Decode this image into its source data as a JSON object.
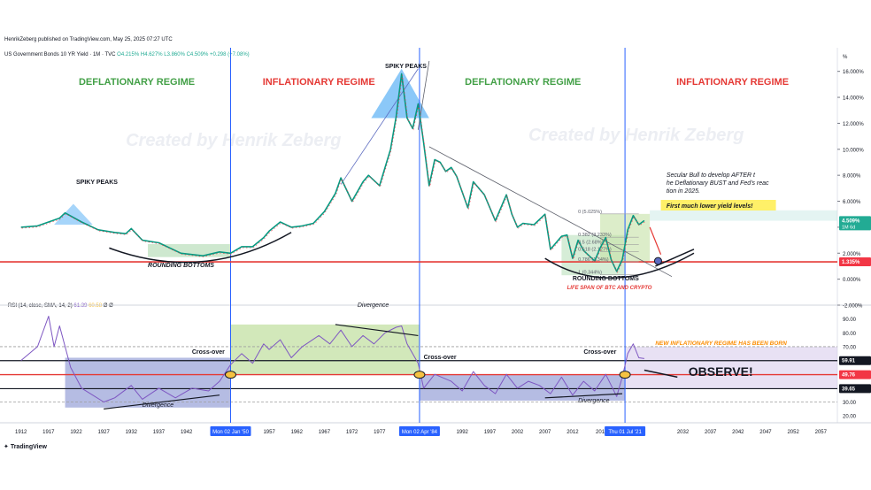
{
  "publisher_line": "HenrikZeberg published on TradingView.com, May 25, 2025 07:27 UTC",
  "symbol_line": {
    "name": "US Government Bonds 10 YR Yield · 1M · TVC",
    "open": "O4.215%",
    "high": "H4.627%",
    "low": "L3.860%",
    "close": "C4.509%",
    "change": "+0.298 (+7.08%)"
  },
  "rsi_line": {
    "label": "RSI (14, close, SMA, 14, 2)",
    "value": "61.39",
    "sma": "60.58",
    "extra": "Ø Ø"
  },
  "branding": "TradingView",
  "percent_symbol": "%",
  "watermarks": [
    "Created by Henrik Zeberg",
    "Created by Henrik Zeberg"
  ],
  "regimes": [
    {
      "label": "DEFLATIONARY REGIME",
      "color": "#43a047"
    },
    {
      "label": "INFLATIONARY REGIME",
      "color": "#e53935"
    },
    {
      "label": "DEFLATIONARY REGIME",
      "color": "#43a047"
    },
    {
      "label": "INFLATIONARY REGIME",
      "color": "#e53935"
    }
  ],
  "annotations": {
    "spiky_peaks_left": "SPIKY PEAKS",
    "spiky_peaks_top": "SPIKY PEAKS",
    "rounding_bottoms_left": "ROUNDING BOTTOMS",
    "rounding_bottoms_right": "ROUNDING BOTTOMS",
    "life_span": "LIFE SPAN OF BTC AND CRYPTO",
    "secular_bull": "Secular Bull to develop AFTER the Deflationary BUST and Fed's reaction in 2025.",
    "lower_yield": "First much lower yield levels!",
    "new_regime": "NEW INFLATIONARY REGIME HAS BEEN BORN",
    "observe": "OBSERVE!",
    "divergence": [
      "Divergence",
      "Divergence",
      "Divergence"
    ],
    "crossover": [
      "Cross-over",
      "Cross-over",
      "Cross-over"
    ]
  },
  "fib_levels": [
    {
      "label": "0 (5.025%)",
      "value": 5.025
    },
    {
      "label": "0.382 (3.233%)",
      "value": 3.233
    },
    {
      "label": "0.5 (2.68%)",
      "value": 2.68
    },
    {
      "label": "0.618 (2.127%)",
      "value": 2.127
    },
    {
      "label": "0.786 (1.34%)",
      "value": 1.34
    },
    {
      "label": "1 (0.344%)",
      "value": 0.344
    }
  ],
  "price_badges": [
    {
      "label": "4.509%",
      "sub": "1M 6d",
      "color": "#22ab94",
      "value": 4.509
    },
    {
      "label": "1.335%",
      "sub": "",
      "color": "#f23645",
      "value": 1.335
    }
  ],
  "rsi_badges": [
    {
      "label": "59.91",
      "color": "#131722",
      "value": 59.91
    },
    {
      "label": "49.76",
      "color": "#f23645",
      "value": 49.76
    },
    {
      "label": "39.65",
      "color": "#131722",
      "value": 39.65
    }
  ],
  "x_tick_labels": [
    "1912",
    "1917",
    "1922",
    "1927",
    "1932",
    "1937",
    "1942",
    "1957",
    "1962",
    "1967",
    "1972",
    "1977",
    "1992",
    "1997",
    "2002",
    "2007",
    "2012",
    "201",
    "2032",
    "2037",
    "2042",
    "2047",
    "2052",
    "2057"
  ],
  "vline_dates": [
    {
      "label": "Mon 02 Jan '50",
      "year": 1950
    },
    {
      "label": "Mon 02 Apr '84",
      "year": 1984.25
    },
    {
      "label": "Thu 01 Jul '21",
      "year": 2021.5
    }
  ],
  "chart_data": [
    {
      "type": "line",
      "title": "US Government Bonds 10 YR Yield · 1M · TVC",
      "xlabel": "",
      "ylabel": "%",
      "x_range": [
        1909,
        2060
      ],
      "ylim": [
        -2,
        17
      ],
      "y_ticks": [
        -2,
        0,
        2,
        4,
        6,
        8,
        10,
        12,
        14,
        16
      ],
      "y_tick_labels": [
        "-2.000%",
        "0.000%",
        "2.000%",
        "4.000%",
        "6.000%",
        "8.000%",
        "10.000%",
        "12.000%",
        "14.000%",
        "16.000%"
      ],
      "series": [
        {
          "values": [
            [
              1912,
              4.0
            ],
            [
              1915,
              4.1
            ],
            [
              1919,
              4.7
            ],
            [
              1920,
              5.1
            ],
            [
              1923,
              4.4
            ],
            [
              1926,
              3.8
            ],
            [
              1929,
              3.6
            ],
            [
              1931,
              3.5
            ],
            [
              1932,
              3.9
            ],
            [
              1934,
              3.0
            ],
            [
              1937,
              2.8
            ],
            [
              1941,
              2.0
            ],
            [
              1945,
              1.8
            ],
            [
              1948,
              2.1
            ],
            [
              1950,
              2.0
            ],
            [
              1952,
              2.5
            ],
            [
              1954,
              2.5
            ],
            [
              1956,
              3.2
            ],
            [
              1957,
              3.7
            ],
            [
              1959,
              4.4
            ],
            [
              1961,
              4.0
            ],
            [
              1963,
              4.1
            ],
            [
              1965,
              4.3
            ],
            [
              1967,
              5.2
            ],
            [
              1969,
              6.6
            ],
            [
              1970,
              7.8
            ],
            [
              1972,
              6.0
            ],
            [
              1974,
              7.5
            ],
            [
              1975,
              8.0
            ],
            [
              1977,
              7.2
            ],
            [
              1978,
              8.6
            ],
            [
              1979,
              10.0
            ],
            [
              1980,
              12.5
            ],
            [
              1981,
              15.8
            ],
            [
              1982,
              12.4
            ],
            [
              1983,
              11.6
            ],
            [
              1984,
              13.5
            ],
            [
              1985,
              10.5
            ],
            [
              1986,
              7.2
            ],
            [
              1987,
              9.2
            ],
            [
              1988,
              9.0
            ],
            [
              1989,
              8.3
            ],
            [
              1990,
              8.6
            ],
            [
              1991,
              7.9
            ],
            [
              1993,
              5.5
            ],
            [
              1994,
              7.5
            ],
            [
              1996,
              6.5
            ],
            [
              1998,
              4.5
            ],
            [
              2000,
              6.5
            ],
            [
              2001,
              5.0
            ],
            [
              2002,
              4.0
            ],
            [
              2003,
              4.3
            ],
            [
              2005,
              4.2
            ],
            [
              2007,
              5.0
            ],
            [
              2008,
              2.3
            ],
            [
              2010,
              3.3
            ],
            [
              2011,
              3.4
            ],
            [
              2012,
              1.6
            ],
            [
              2013,
              3.0
            ],
            [
              2014,
              2.2
            ],
            [
              2016,
              1.4
            ],
            [
              2017,
              2.4
            ],
            [
              2018,
              3.2
            ],
            [
              2019,
              1.5
            ],
            [
              2020,
              0.6
            ],
            [
              2021,
              1.5
            ],
            [
              2022,
              3.8
            ],
            [
              2023,
              4.9
            ],
            [
              2024,
              4.2
            ],
            [
              2025,
              4.509
            ]
          ]
        }
      ],
      "horizontal_lines": [
        {
          "value": 1.335,
          "color": "#e53935"
        }
      ]
    },
    {
      "type": "line",
      "title": "RSI (14, close, SMA, 14, 2)",
      "ylim": [
        15,
        100
      ],
      "y_ticks": [
        20,
        30,
        40,
        50,
        60,
        70,
        80,
        90
      ],
      "levels": [
        70,
        59.91,
        49.76,
        39.65,
        30
      ],
      "series": [
        {
          "name": "RSI",
          "values": [
            [
              1912,
              60
            ],
            [
              1915,
              70
            ],
            [
              1917,
              92
            ],
            [
              1918,
              70
            ],
            [
              1919,
              85
            ],
            [
              1921,
              55
            ],
            [
              1923,
              40
            ],
            [
              1925,
              35
            ],
            [
              1927,
              30
            ],
            [
              1929,
              33
            ],
            [
              1932,
              42
            ],
            [
              1934,
              32
            ],
            [
              1937,
              40
            ],
            [
              1940,
              33
            ],
            [
              1943,
              40
            ],
            [
              1946,
              38
            ],
            [
              1948,
              45
            ],
            [
              1950,
              57
            ],
            [
              1952,
              65
            ],
            [
              1954,
              58
            ],
            [
              1956,
              72
            ],
            [
              1957,
              68
            ],
            [
              1959,
              75
            ],
            [
              1961,
              62
            ],
            [
              1963,
              70
            ],
            [
              1966,
              78
            ],
            [
              1968,
              72
            ],
            [
              1970,
              82
            ],
            [
              1972,
              70
            ],
            [
              1974,
              78
            ],
            [
              1976,
              72
            ],
            [
              1978,
              80
            ],
            [
              1980,
              84
            ],
            [
              1981,
              85
            ],
            [
              1982,
              72
            ],
            [
              1984,
              58
            ],
            [
              1985,
              40
            ],
            [
              1987,
              50
            ],
            [
              1990,
              45
            ],
            [
              1992,
              38
            ],
            [
              1994,
              52
            ],
            [
              1996,
              42
            ],
            [
              1998,
              36
            ],
            [
              2000,
              50
            ],
            [
              2002,
              40
            ],
            [
              2004,
              45
            ],
            [
              2006,
              42
            ],
            [
              2008,
              36
            ],
            [
              2010,
              48
            ],
            [
              2012,
              35
            ],
            [
              2014,
              45
            ],
            [
              2016,
              38
            ],
            [
              2018,
              50
            ],
            [
              2020,
              34
            ],
            [
              2021,
              48
            ],
            [
              2022,
              65
            ],
            [
              2023,
              72
            ],
            [
              2024,
              62
            ],
            [
              2025,
              61.39
            ]
          ]
        }
      ]
    }
  ]
}
